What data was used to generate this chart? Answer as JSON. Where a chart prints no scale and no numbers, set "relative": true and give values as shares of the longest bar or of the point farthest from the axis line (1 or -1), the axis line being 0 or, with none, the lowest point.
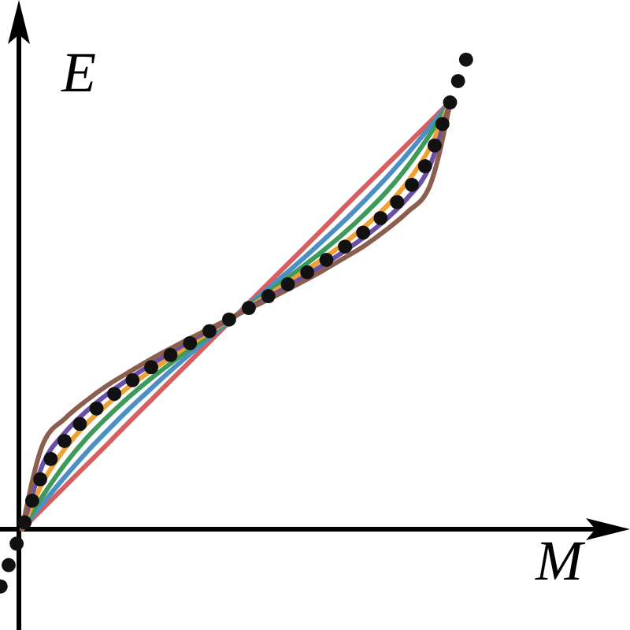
{
  "chart_data": {
    "type": "line",
    "xlabel": "M",
    "ylabel": "E",
    "relative": true,
    "categories": [
      null,
      null,
      null,
      null,
      null,
      null,
      null,
      null,
      null,
      null,
      null,
      null,
      null,
      null,
      null,
      null,
      null,
      null,
      null,
      null,
      null,
      null,
      null
    ],
    "series": [
      {
        "color": "#d65f5f",
        "values": [
          null,
          0,
          0.044,
          0.088,
          0.132,
          0.176,
          0.221,
          0.265,
          0.309,
          0.353,
          0.397,
          0.441,
          0.485,
          0.529,
          0.573,
          0.617,
          0.662,
          0.706,
          0.75,
          0.794,
          0.838,
          0.882,
          null
        ]
      },
      {
        "color": "#4c8fc4",
        "values": [
          null,
          0,
          0.055,
          0.108,
          0.158,
          0.204,
          0.248,
          0.289,
          0.329,
          0.367,
          0.404,
          0.441,
          0.478,
          0.515,
          0.553,
          0.593,
          0.634,
          0.678,
          0.724,
          0.774,
          0.827,
          0.882,
          null
        ]
      },
      {
        "color": "#3d9a5a",
        "values": [
          null,
          0,
          0.071,
          0.134,
          0.187,
          0.232,
          0.273,
          0.31,
          0.344,
          0.377,
          0.409,
          0.441,
          0.473,
          0.505,
          0.538,
          0.572,
          0.609,
          0.65,
          0.695,
          0.748,
          0.811,
          0.882,
          null
        ]
      },
      {
        "color": "#f0a030",
        "values": [
          null,
          0,
          0.099,
          0.166,
          0.217,
          0.258,
          0.294,
          0.326,
          0.356,
          0.385,
          0.413,
          0.441,
          0.469,
          0.497,
          0.526,
          0.556,
          0.588,
          0.624,
          0.665,
          0.716,
          0.783,
          0.882,
          null
        ]
      },
      {
        "color": "#6a4fa8",
        "values": [
          null,
          0,
          0.137,
          0.199,
          0.243,
          0.279,
          0.31,
          0.339,
          0.366,
          0.392,
          0.416,
          0.441,
          0.466,
          0.49,
          0.516,
          0.543,
          0.572,
          0.603,
          0.639,
          0.683,
          0.745,
          0.882,
          null
        ]
      },
      {
        "color": "#8c5e50",
        "values": [
          null,
          0,
          0.178,
          0.228,
          0.265,
          0.297,
          0.324,
          0.35,
          0.374,
          0.397,
          0.419,
          0.441,
          0.463,
          0.485,
          0.508,
          0.532,
          0.558,
          0.585,
          0.617,
          0.654,
          0.704,
          0.882,
          null
        ]
      },
      {
        "color": "#111111",
        "line_style": "dotted",
        "values": [
          -0.118,
          0,
          0.118,
          0.183,
          0.23,
          0.268,
          0.302,
          0.333,
          0.361,
          0.388,
          0.415,
          0.441,
          0.467,
          0.494,
          0.521,
          0.549,
          0.58,
          0.614,
          0.652,
          0.699,
          0.764,
          0.882,
          1
        ]
      }
    ]
  }
}
